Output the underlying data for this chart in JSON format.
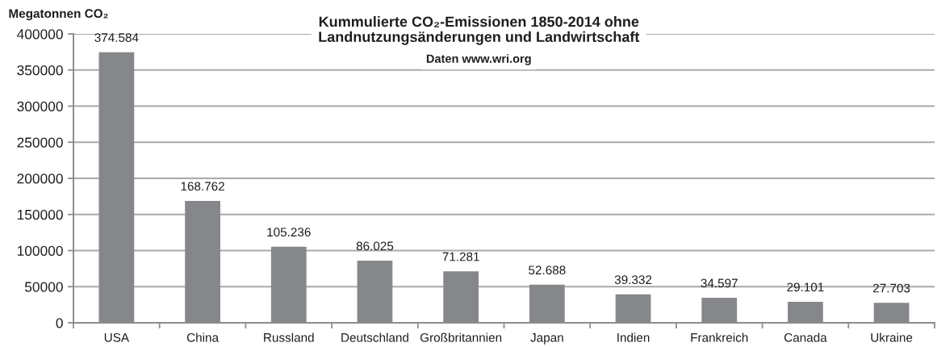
{
  "chart_data": {
    "type": "bar",
    "title": "Kummulierte CO₂-Emissionen 1850-2014 ohne\nLandnutzungsänderungen und Landwirtschaft",
    "subtitle": "Daten www.wri.org",
    "ylabel": "Megatonnen CO₂",
    "categories": [
      "USA",
      "China",
      "Russland",
      "Deutschland",
      "Großbritannien",
      "Japan",
      "Indien",
      "Frankreich",
      "Canada",
      "Ukraine"
    ],
    "values": [
      374584,
      168762,
      105236,
      86025,
      71281,
      52688,
      39332,
      34597,
      29101,
      27703
    ],
    "value_labels": [
      "374.584",
      "168.762",
      "105.236",
      "86.025",
      "71.281",
      "52.688",
      "39.332",
      "34.597",
      "29.101",
      "27.703"
    ],
    "color": "#86878b",
    "ylim": [
      0,
      400000
    ],
    "yticks": [
      0,
      50000,
      100000,
      150000,
      200000,
      250000,
      300000,
      350000,
      400000
    ],
    "grid": "y"
  }
}
